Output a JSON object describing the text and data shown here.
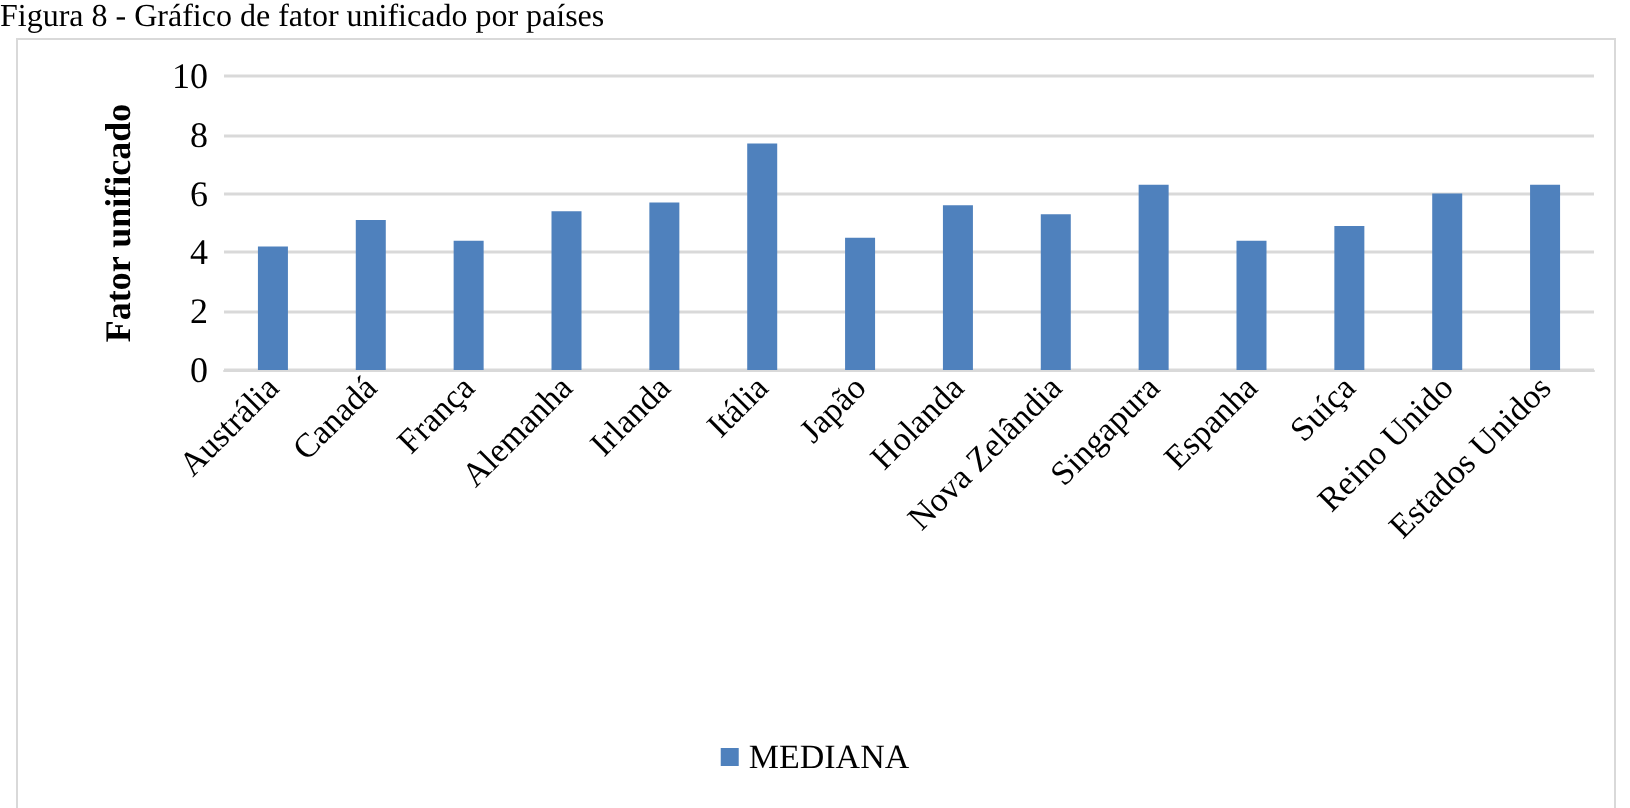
{
  "chart_data": {
    "type": "bar",
    "title": "Figura 8 - Gráfico de fator unificado por países",
    "ylabel": "Fator unificado",
    "categories": [
      "Austrália",
      "Canadá",
      "França",
      "Alemanha",
      "Irlanda",
      "Itália",
      "Japão",
      "Holanda",
      "Nova Zelândia",
      "Singapura",
      "Espanha",
      "Suíça",
      "Reino Unido",
      "Estados Unidos"
    ],
    "series": [
      {
        "name": "MEDIANA",
        "color": "#4f81bd",
        "values": [
          4.2,
          5.1,
          4.4,
          5.4,
          5.7,
          7.7,
          4.5,
          5.6,
          5.3,
          6.3,
          4.4,
          4.9,
          6.0,
          6.3
        ]
      }
    ],
    "ylim": [
      0,
      10
    ],
    "yticks": [
      0,
      2,
      4,
      6,
      8,
      10
    ],
    "grid": "y",
    "legend": "bottom"
  }
}
